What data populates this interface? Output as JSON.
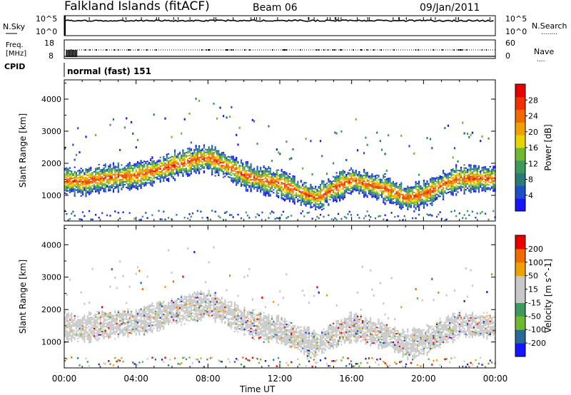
{
  "header": {
    "station": "Falkland Islands (fitACF)",
    "beam": "Beam 06",
    "date": "09/Jan/2011"
  },
  "left_labels": {
    "nsky": "N.Sky",
    "freq_line1": "Freq.",
    "freq_line2": "[MHz]",
    "cpid": "CPID"
  },
  "right_labels": {
    "nsearch": "N.Search",
    "nsearch_dots": "........",
    "nave": "Nave",
    "nave_dots": "...."
  },
  "cpid_text": "normal (fast) 151",
  "strip_axes": {
    "noise_left_ticks": [
      "10^5",
      "10^0"
    ],
    "noise_right_ticks": [
      "10^5",
      "10^0"
    ],
    "freq_left_ticks": [
      "18",
      "8"
    ],
    "nave_right_ticks": [
      "60",
      "0"
    ]
  },
  "colors": {
    "power_scale": [
      "#1515ff",
      "#1d4fc8",
      "#2a7a7a",
      "#3c9a5c",
      "#70b830",
      "#e8d400",
      "#f0a000",
      "#f06a00",
      "#f03000",
      "#e80000"
    ],
    "velocity_scale": [
      "#e80000",
      "#f06a00",
      "#f0a000",
      "#c8c8c8",
      "#c8c8c8",
      "#3c9a5c",
      "#70b830",
      "#2a6a9a",
      "#1515ff"
    ]
  },
  "chart_data": [
    {
      "type": "heatmap",
      "title": "",
      "xlabel": "Time UT",
      "ylabel": "Slant Range [km]",
      "xlim": [
        "00:00",
        "24:00"
      ],
      "xticks": [
        "00:00",
        "04:00",
        "08:00",
        "12:00",
        "16:00",
        "20:00",
        "00:00"
      ],
      "ylim": [
        200,
        4600
      ],
      "yticks": [
        1000,
        2000,
        3000,
        4000
      ],
      "colorbar": {
        "label": "Power [dB]",
        "range": [
          0,
          32
        ],
        "ticks": [
          4,
          8,
          12,
          16,
          20,
          24,
          28
        ]
      },
      "scatter_band_center_km": {
        "x_hours": [
          0,
          1,
          2,
          3,
          4,
          5,
          6,
          7,
          8,
          9,
          10,
          11,
          12,
          13,
          14,
          15,
          16,
          17,
          18,
          19,
          20,
          21,
          22,
          23,
          24
        ],
        "y_km": [
          1450,
          1400,
          1500,
          1550,
          1600,
          1750,
          1900,
          2050,
          2150,
          1900,
          1600,
          1450,
          1350,
          1100,
          900,
          1200,
          1450,
          1300,
          1150,
          900,
          1000,
          1300,
          1500,
          1500,
          1500
        ]
      }
    },
    {
      "type": "heatmap",
      "title": "",
      "xlabel": "Time UT",
      "ylabel": "Slant Range [km]",
      "xlim": [
        "00:00",
        "24:00"
      ],
      "xticks": [
        "00:00",
        "04:00",
        "08:00",
        "12:00",
        "16:00",
        "20:00",
        "00:00"
      ],
      "ylim": [
        200,
        4600
      ],
      "yticks": [
        1000,
        2000,
        3000,
        4000
      ],
      "colorbar": {
        "label": "Velocity [m s^-1]",
        "ticks": [
          "200",
          "100",
          "50",
          "15",
          "-15",
          "-50",
          "-100",
          "-200"
        ]
      }
    }
  ]
}
